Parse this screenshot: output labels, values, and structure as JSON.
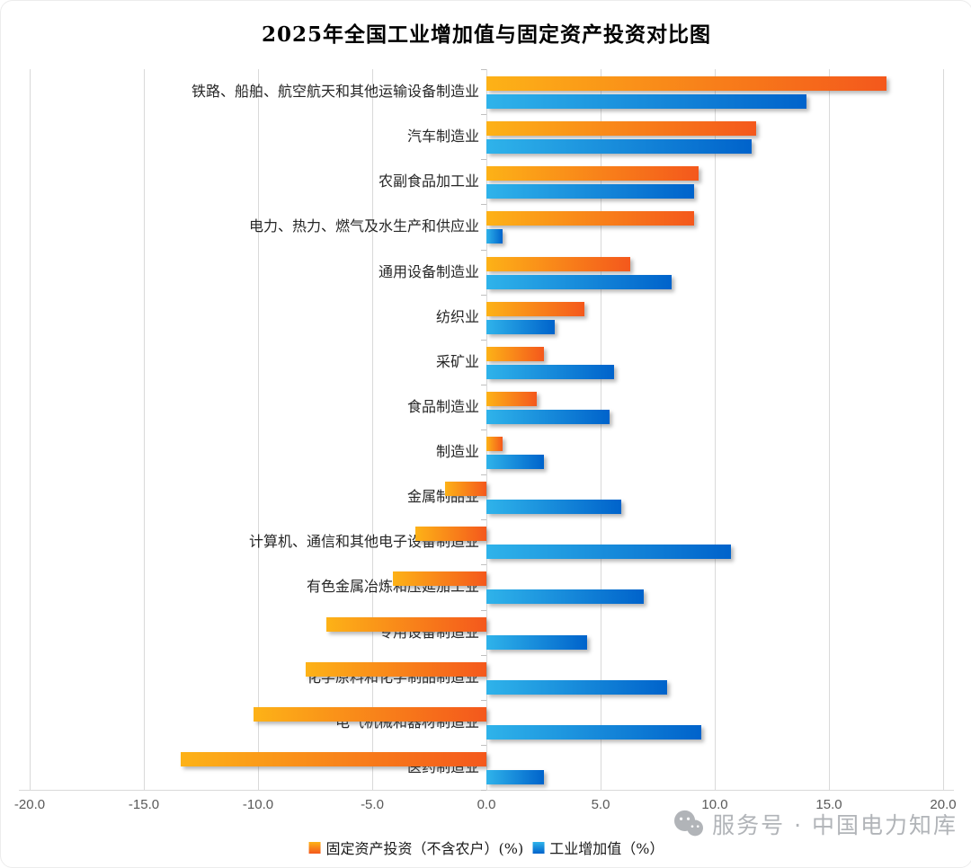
{
  "title": "2025年全国工业增加值与固定资产投资对比图",
  "watermark": {
    "text": "服务号 · 中国电力知库",
    "icon": "wechat-icon"
  },
  "colors": {
    "orange_start": "#FDB217",
    "orange_end": "#F4581C",
    "blue_start": "#2FB3EA",
    "blue_end": "#0063CB",
    "gridline": "#D9D9D9",
    "tick_text": "#595959",
    "watermark_gray": "#A9ACB1"
  },
  "chart_data": {
    "type": "bar",
    "orientation": "horizontal",
    "title": "2025年全国工业增加值与固定资产投资对比图",
    "categories": [
      "铁路、船舶、航空航天和其他运输设备制造业",
      "汽车制造业",
      "农副食品加工业",
      "电力、热力、燃气及水生产和供应业",
      "通用设备制造业",
      "纺织业",
      "采矿业",
      "食品制造业",
      "制造业",
      "金属制品业",
      "计算机、通信和其他电子设备制造业",
      "有色金属冶炼和压延加工业",
      "专用设备制造业",
      "化学原料和化学制品制造业",
      "电气机械和器材制造业",
      "医药制造业"
    ],
    "series": [
      {
        "name": "固定资产投资（不含农户）(%)",
        "color": "orange",
        "values": [
          17.5,
          11.8,
          9.3,
          9.1,
          6.3,
          4.3,
          2.5,
          2.2,
          0.7,
          -1.8,
          -3.1,
          -4.1,
          -7.0,
          -7.9,
          -10.2,
          -13.4
        ]
      },
      {
        "name": "工业增加值（%）",
        "color": "blue",
        "values": [
          14.0,
          11.6,
          9.1,
          0.7,
          8.1,
          3.0,
          5.6,
          5.4,
          2.5,
          5.9,
          10.7,
          6.9,
          4.4,
          7.9,
          9.4,
          2.5
        ]
      }
    ],
    "xlim": [
      -20,
      20
    ],
    "x_ticks": [
      -20,
      -15,
      -10,
      -5,
      0,
      5,
      10,
      15,
      20
    ],
    "x_tick_labels": [
      "-20.0",
      "-15.0",
      "-10.0",
      "-5.0",
      "0.0",
      "5.0",
      "10.0",
      "15.0",
      "20.0"
    ],
    "grid": true,
    "legend_position": "bottom"
  }
}
